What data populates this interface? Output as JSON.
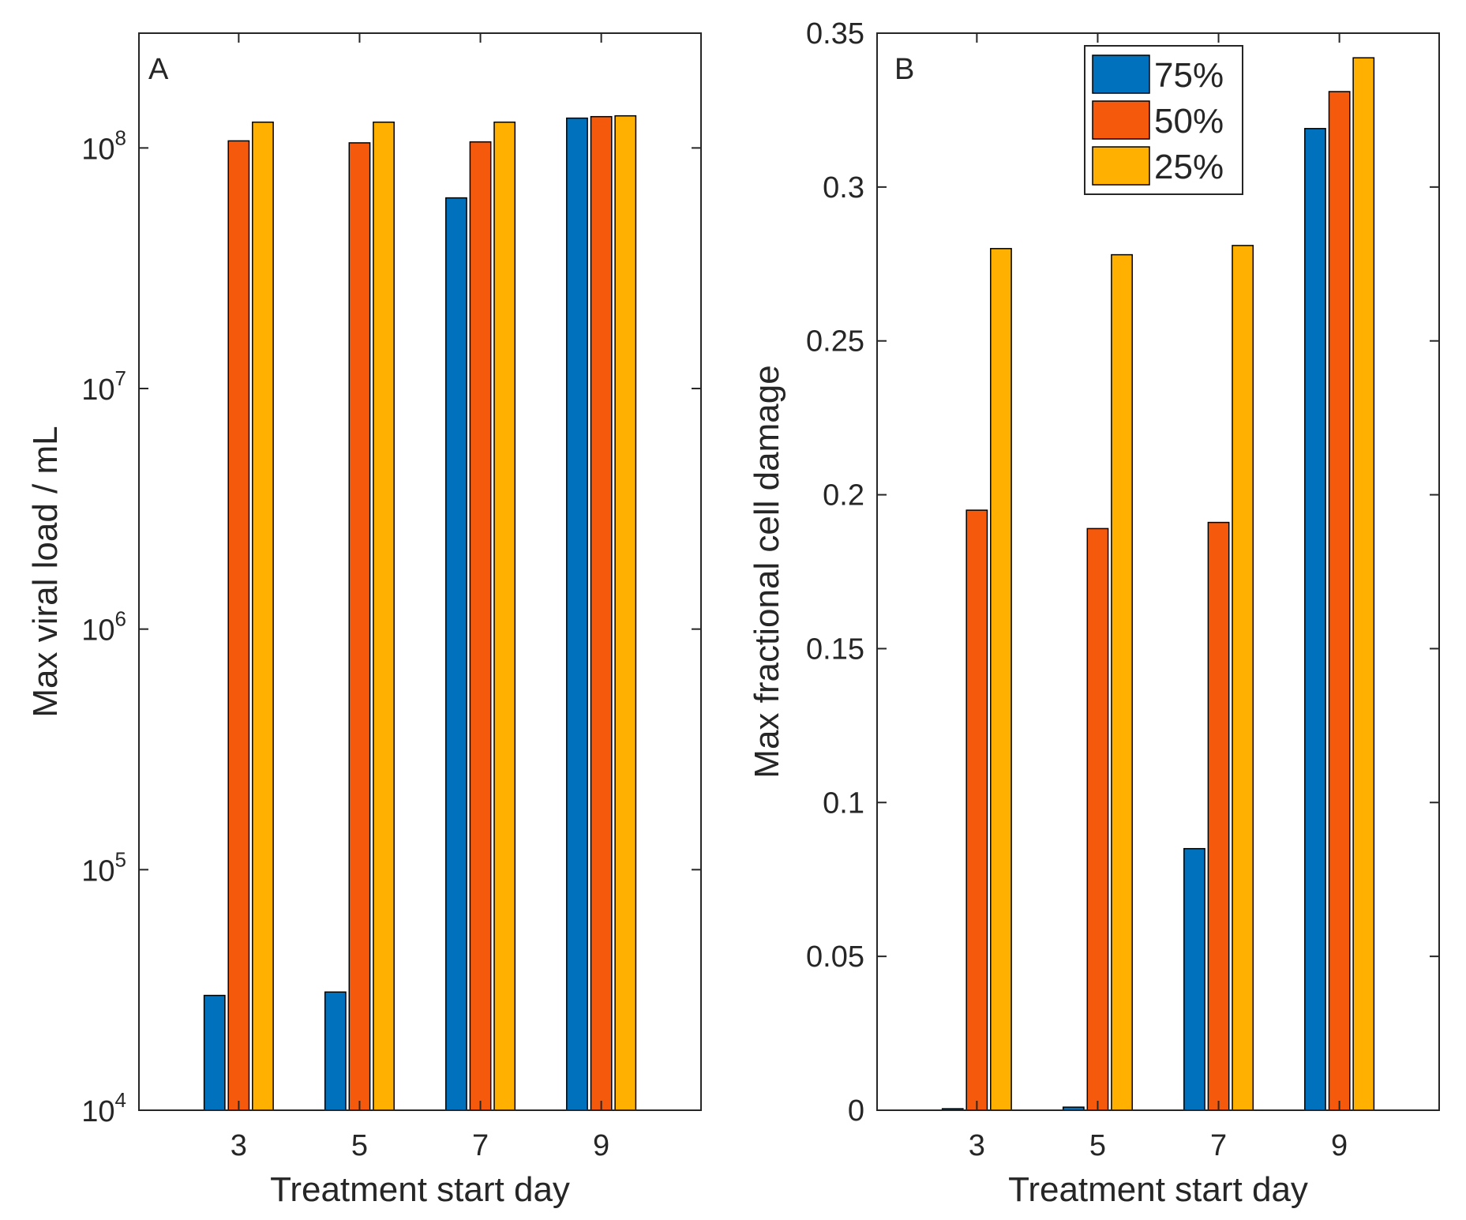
{
  "colors": {
    "series_75": "#0072bd",
    "series_50": "#f55a0c",
    "series_25": "#ffb000",
    "axis": "#262626"
  },
  "chart_data": [
    {
      "panel": "A",
      "type": "bar",
      "yscale": "log",
      "categories": [
        "3",
        "5",
        "7",
        "9"
      ],
      "xlabel": "Treatment start day",
      "ylabel": "Max viral load / mL",
      "ylim": [
        10000,
        300000000
      ],
      "yticks": [
        {
          "value": 10000,
          "base": "10",
          "exp": "4"
        },
        {
          "value": 100000,
          "base": "10",
          "exp": "5"
        },
        {
          "value": 1000000,
          "base": "10",
          "exp": "6"
        },
        {
          "value": 10000000,
          "base": "10",
          "exp": "7"
        },
        {
          "value": 100000000,
          "base": "10",
          "exp": "8"
        }
      ],
      "series": [
        {
          "name": "75%",
          "color_key": "series_75",
          "values": [
            30000,
            31000,
            62000000,
            133000000
          ]
        },
        {
          "name": "50%",
          "color_key": "series_50",
          "values": [
            107000000,
            105000000,
            106000000,
            135000000
          ]
        },
        {
          "name": "25%",
          "color_key": "series_25",
          "values": [
            128000000,
            128000000,
            128000000,
            136000000
          ]
        }
      ]
    },
    {
      "panel": "B",
      "type": "bar",
      "yscale": "linear",
      "categories": [
        "3",
        "5",
        "7",
        "9"
      ],
      "xlabel": "Treatment start day",
      "ylabel": "Max fractional cell damage",
      "ylim": [
        0,
        0.35
      ],
      "yticks": [
        {
          "value": 0,
          "label": "0"
        },
        {
          "value": 0.05,
          "label": "0.05"
        },
        {
          "value": 0.1,
          "label": "0.1"
        },
        {
          "value": 0.15,
          "label": "0.15"
        },
        {
          "value": 0.2,
          "label": "0.2"
        },
        {
          "value": 0.25,
          "label": "0.25"
        },
        {
          "value": 0.3,
          "label": "0.3"
        },
        {
          "value": 0.35,
          "label": "0.35"
        }
      ],
      "legend": {
        "location": "top-right",
        "entries": [
          {
            "label": "75%",
            "color_key": "series_75"
          },
          {
            "label": "50%",
            "color_key": "series_50"
          },
          {
            "label": "25%",
            "color_key": "series_25"
          }
        ]
      },
      "series": [
        {
          "name": "75%",
          "color_key": "series_75",
          "values": [
            0.0005,
            0.001,
            0.085,
            0.319
          ]
        },
        {
          "name": "50%",
          "color_key": "series_50",
          "values": [
            0.195,
            0.189,
            0.191,
            0.331
          ]
        },
        {
          "name": "25%",
          "color_key": "series_25",
          "values": [
            0.28,
            0.278,
            0.281,
            0.342
          ]
        }
      ]
    }
  ]
}
